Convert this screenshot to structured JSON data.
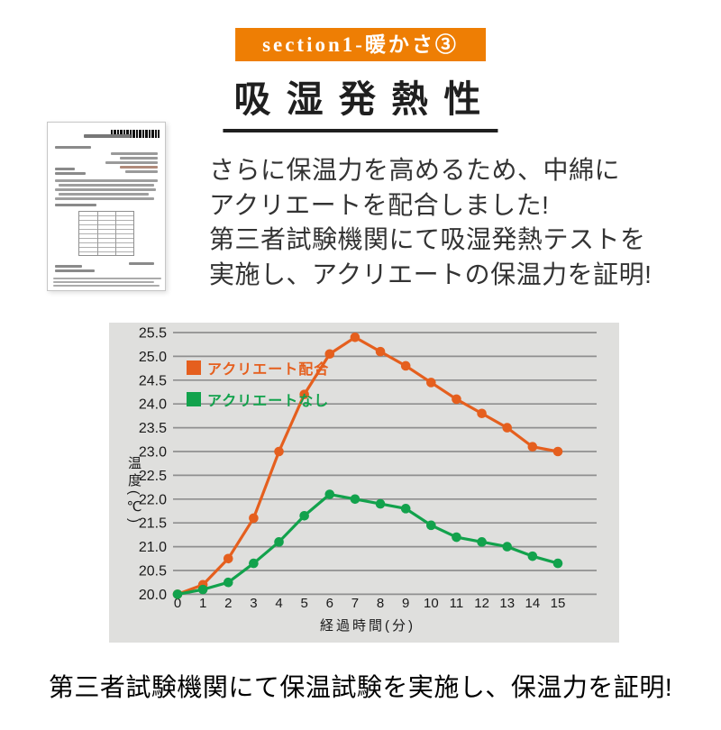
{
  "header": {
    "badge": {
      "label": "section1-暖かさ③",
      "bg": "#ee7e04",
      "text_color": "#ffffff"
    },
    "title": "吸湿発熱性"
  },
  "intro": {
    "lines": [
      "さらに保温力を高めるため、中綿に",
      "アクリエートを配合しました!",
      "第三者試験機関にて吸湿発熱テストを",
      "実施し、アクリエートの保温力を証明!"
    ]
  },
  "chart_data": {
    "type": "line",
    "x": [
      0,
      1,
      2,
      3,
      4,
      5,
      6,
      7,
      8,
      9,
      10,
      11,
      12,
      13,
      14,
      15
    ],
    "xlabel": "経過時間(分)",
    "ylabel": "温度(℃)",
    "ylim": [
      20.0,
      25.5
    ],
    "ytick_step": 0.5,
    "grid": true,
    "background": "#dfdfdd",
    "grid_color": "#8f8f8f",
    "legend_position": "upper-left-inside",
    "series": [
      {
        "name": "アクリエート配合",
        "color": "#e55f1e",
        "values": [
          20.0,
          20.2,
          20.75,
          21.6,
          23.0,
          24.2,
          25.05,
          25.4,
          25.1,
          24.8,
          24.45,
          24.1,
          23.8,
          23.5,
          23.1,
          23.0
        ]
      },
      {
        "name": "アクリエートなし",
        "color": "#12a24c",
        "values": [
          20.0,
          20.1,
          20.25,
          20.65,
          21.1,
          21.65,
          22.1,
          22.0,
          21.9,
          21.8,
          21.45,
          21.2,
          21.1,
          21.0,
          20.8,
          20.65
        ]
      }
    ]
  },
  "footer": {
    "text": "第三者試験機関にて保温試験を実施し、保温力を証明!"
  }
}
